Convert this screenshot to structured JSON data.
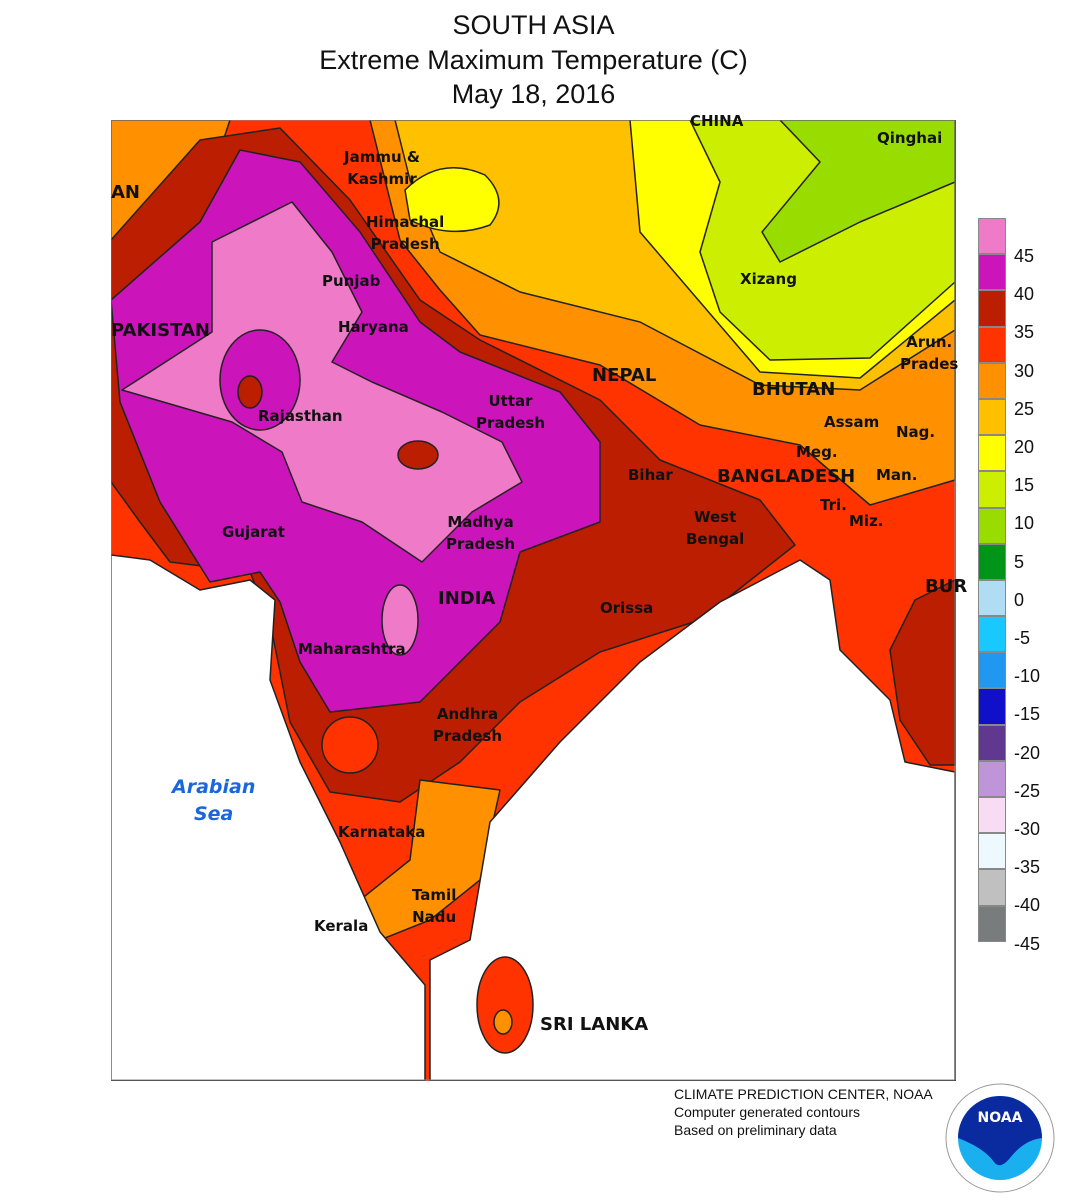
{
  "title": {
    "line1": "SOUTH ASIA",
    "line2": "Extreme Maximum Temperature (C)",
    "line3": "May 18, 2016"
  },
  "legend": {
    "colors": [
      "#EE7AC8",
      "#CC14BB",
      "#BB1E00",
      "#FF3300",
      "#FF9000",
      "#FFC000",
      "#FFFF00",
      "#CCEE00",
      "#99DD00",
      "#009418",
      "#B0DCF4",
      "#18C8FF",
      "#2098F0",
      "#1010C8",
      "#603890",
      "#C094D8",
      "#F8DCF4",
      "#EEF8FF",
      "#C0C0C0",
      "#787C7C"
    ],
    "ticks": [
      "45",
      "40",
      "35",
      "30",
      "25",
      "20",
      "15",
      "10",
      "5",
      "0",
      "-5",
      "-10",
      "-15",
      "-20",
      "-25",
      "-30",
      "-35",
      "-40",
      "-45"
    ]
  },
  "labels": {
    "china": "CHINA",
    "qinghai": "Qinghai",
    "jk": "Jammu &\nKashmir",
    "an": "AN",
    "hp": "Himachal\nPradesh",
    "punjab": "Punjab",
    "xizang": "Xizang",
    "pakistan": "PAKISTAN",
    "haryana": "Haryana",
    "arun": "Arun.\nPrades",
    "nepal": "NEPAL",
    "bhutan": "BHUTAN",
    "up": "Uttar\nPradesh",
    "rajasthan": "Rajasthan",
    "assam": "Assam",
    "nag": "Nag.",
    "meg": "Meg.",
    "bihar": "Bihar",
    "bangladesh": "BANGLADESH",
    "man": "Man.",
    "gujarat": "Gujarat",
    "mp": "Madhya\nPradesh",
    "wb": "West\nBengal",
    "tri": "Tri.",
    "miz": "Miz.",
    "bur": "BUR",
    "india": "INDIA",
    "orissa": "Orissa",
    "maharashtra": "Maharashtra",
    "ap": "Andhra\nPradesh",
    "arabian": "Arabian\nSea",
    "karnataka": "Karnataka",
    "tn": "Tamil\nNadu",
    "kerala": "Kerala",
    "srilanka": "SRI LANKA"
  },
  "credits": {
    "line1": "CLIMATE PREDICTION CENTER, NOAA",
    "line2": "Computer generated contours",
    "line3": "Based on preliminary data",
    "logo_text": "NOAA"
  }
}
